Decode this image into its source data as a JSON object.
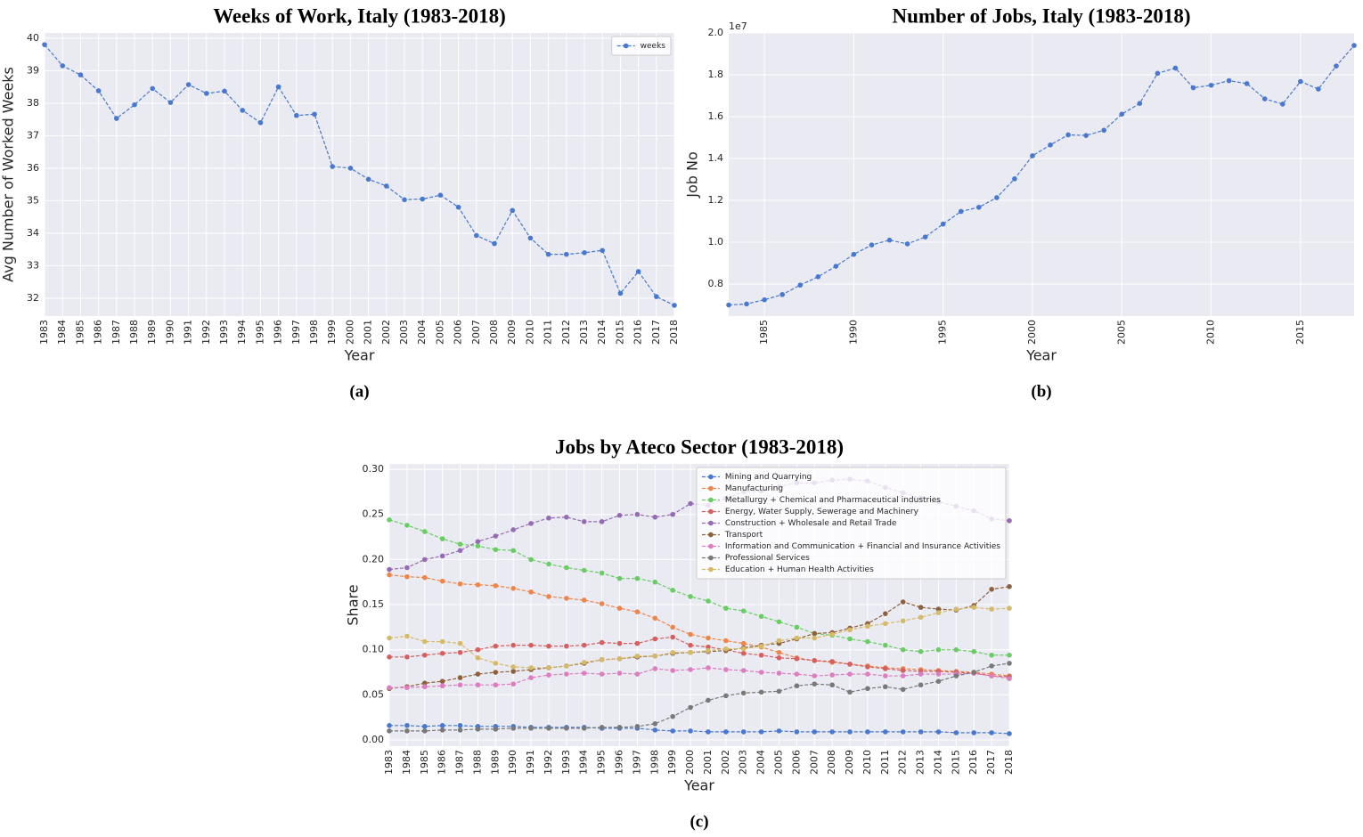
{
  "chart_data": [
    {
      "type": "line",
      "title": "Weeks of Work, Italy (1983-2018)",
      "caption": "(a)",
      "xlabel": "Year",
      "ylabel": "Avg Number of Worked Weeks",
      "categories": [
        "1983",
        "1984",
        "1985",
        "1986",
        "1987",
        "1988",
        "1989",
        "1990",
        "1991",
        "1992",
        "1993",
        "1994",
        "1995",
        "1996",
        "1997",
        "1998",
        "1999",
        "2000",
        "2001",
        "2002",
        "2003",
        "2004",
        "2005",
        "2006",
        "2007",
        "2008",
        "2009",
        "2010",
        "2011",
        "2012",
        "2013",
        "2014",
        "2015",
        "2016",
        "2017",
        "2018"
      ],
      "series": [
        {
          "name": "weeks",
          "color": "#4878d0",
          "values": [
            39.8,
            39.15,
            38.87,
            38.38,
            37.53,
            37.95,
            38.45,
            38.02,
            38.57,
            38.3,
            38.37,
            37.78,
            37.4,
            38.5,
            37.62,
            37.66,
            36.05,
            36.0,
            35.66,
            35.45,
            35.03,
            35.05,
            35.17,
            34.8,
            33.93,
            33.68,
            34.7,
            33.85,
            33.35,
            33.35,
            33.4,
            33.47,
            32.15,
            32.82,
            32.05,
            31.78
          ]
        }
      ],
      "ylim": [
        31.45,
        40.16
      ],
      "yticks": [
        32,
        33,
        34,
        35,
        36,
        37,
        38,
        39,
        40
      ],
      "grid": true,
      "legend": "upper right"
    },
    {
      "type": "line",
      "title": "Number of Jobs, Italy (1983-2018)",
      "caption": "(b)",
      "xlabel": "Year",
      "ylabel": "Job No",
      "y_offset_text": "1e7",
      "x": [
        1983,
        1984,
        1985,
        1986,
        1987,
        1988,
        1989,
        1990,
        1991,
        1992,
        1993,
        1994,
        1995,
        1996,
        1997,
        1998,
        1999,
        2000,
        2001,
        2002,
        2003,
        2004,
        2005,
        2006,
        2007,
        2008,
        2009,
        2010,
        2011,
        2012,
        2013,
        2014,
        2015,
        2016,
        2017,
        2018
      ],
      "series": [
        {
          "color": "#4878d0",
          "values": [
            0.7,
            0.705,
            0.725,
            0.75,
            0.795,
            0.835,
            0.885,
            0.942,
            0.987,
            1.01,
            0.992,
            1.025,
            1.087,
            1.147,
            1.167,
            1.213,
            1.303,
            1.413,
            1.465,
            1.513,
            1.51,
            1.535,
            1.612,
            1.663,
            1.807,
            1.832,
            1.738,
            1.75,
            1.772,
            1.758,
            1.685,
            1.66,
            1.768,
            1.732,
            1.842,
            1.94
          ]
        }
      ],
      "xlim": [
        1983,
        2018
      ],
      "xticks": [
        1985,
        1990,
        1995,
        2000,
        2005,
        2010,
        2015
      ],
      "ylim": [
        0.647,
        2.0
      ],
      "yticks": [
        0.8,
        {
          "value": 1,
          "label": "1.0"
        },
        1.2,
        1.4,
        1.6,
        1.8,
        {
          "value": 2,
          "label": "2.0"
        }
      ],
      "grid": true
    },
    {
      "type": "line",
      "title": "Jobs by Ateco Sector (1983-2018)",
      "caption": "(c)",
      "xlabel": "Year",
      "ylabel": "Share",
      "categories": [
        "1983",
        "1984",
        "1985",
        "1986",
        "1987",
        "1988",
        "1989",
        "1990",
        "1991",
        "1992",
        "1993",
        "1994",
        "1995",
        "1996",
        "1997",
        "1998",
        "1999",
        "2000",
        "2001",
        "2002",
        "2003",
        "2004",
        "2005",
        "2006",
        "2007",
        "2008",
        "2009",
        "2010",
        "2011",
        "2012",
        "2013",
        "2014",
        "2015",
        "2016",
        "2017",
        "2018"
      ],
      "series": [
        {
          "name": "Mining and Quarrying",
          "color": "#4878d0",
          "values": [
            0.016,
            0.016,
            0.015,
            0.016,
            0.016,
            0.015,
            0.015,
            0.015,
            0.014,
            0.014,
            0.014,
            0.014,
            0.013,
            0.013,
            0.013,
            0.011,
            0.01,
            0.01,
            0.009,
            0.009,
            0.009,
            0.009,
            0.01,
            0.009,
            0.009,
            0.009,
            0.009,
            0.009,
            0.009,
            0.009,
            0.009,
            0.009,
            0.008,
            0.008,
            0.008,
            0.007
          ]
        },
        {
          "name": "Manufacturing",
          "color": "#ee854a",
          "values": [
            0.183,
            0.181,
            0.18,
            0.176,
            0.173,
            0.172,
            0.171,
            0.168,
            0.164,
            0.159,
            0.157,
            0.155,
            0.151,
            0.146,
            0.142,
            0.135,
            0.125,
            0.117,
            0.113,
            0.11,
            0.107,
            0.103,
            0.097,
            0.091,
            0.088,
            0.086,
            0.084,
            0.082,
            0.08,
            0.079,
            0.078,
            0.077,
            0.076,
            0.075,
            0.073,
            0.071
          ]
        },
        {
          "name": "Metallurgy + Chemical and Pharmaceutical industries",
          "color": "#6acc64",
          "values": [
            0.244,
            0.238,
            0.231,
            0.223,
            0.217,
            0.215,
            0.211,
            0.21,
            0.2,
            0.195,
            0.191,
            0.188,
            0.185,
            0.179,
            0.179,
            0.175,
            0.166,
            0.159,
            0.154,
            0.146,
            0.143,
            0.137,
            0.131,
            0.125,
            0.118,
            0.116,
            0.112,
            0.109,
            0.105,
            0.1,
            0.098,
            0.1,
            0.1,
            0.098,
            0.094,
            0.094
          ]
        },
        {
          "name": "Energy, Water Supply, Sewerage and Machinery",
          "color": "#d65f5f",
          "values": [
            0.092,
            0.092,
            0.094,
            0.096,
            0.097,
            0.1,
            0.104,
            0.105,
            0.105,
            0.104,
            0.104,
            0.105,
            0.108,
            0.107,
            0.107,
            0.112,
            0.114,
            0.105,
            0.103,
            0.1,
            0.096,
            0.094,
            0.091,
            0.09,
            0.088,
            0.087,
            0.084,
            0.081,
            0.079,
            0.077,
            0.076,
            0.076,
            0.075,
            0.074,
            0.071,
            0.07
          ]
        },
        {
          "name": "Construction + Wholesale and Retail Trade",
          "color": "#956cb4",
          "values": [
            0.189,
            0.191,
            0.2,
            0.204,
            0.21,
            0.22,
            0.226,
            0.233,
            0.24,
            0.246,
            0.247,
            0.242,
            0.242,
            0.249,
            0.25,
            0.247,
            0.25,
            0.262,
            0.26,
            0.268,
            0.275,
            0.276,
            0.281,
            0.285,
            0.285,
            0.288,
            0.289,
            0.287,
            0.28,
            0.274,
            0.268,
            0.264,
            0.259,
            0.254,
            0.245,
            0.243
          ]
        },
        {
          "name": "Transport",
          "color": "#8c613c",
          "values": [
            0.057,
            0.059,
            0.063,
            0.065,
            0.069,
            0.073,
            0.075,
            0.076,
            0.078,
            0.08,
            0.082,
            0.085,
            0.089,
            0.09,
            0.092,
            0.093,
            0.096,
            0.097,
            0.098,
            0.099,
            0.102,
            0.105,
            0.107,
            0.112,
            0.118,
            0.119,
            0.124,
            0.129,
            0.14,
            0.153,
            0.147,
            0.145,
            0.144,
            0.149,
            0.167,
            0.17
          ]
        },
        {
          "name": "Information and Communication + Financial and Insurance Activities",
          "color": "#dc7ec0",
          "values": [
            0.058,
            0.058,
            0.059,
            0.06,
            0.061,
            0.061,
            0.061,
            0.062,
            0.069,
            0.072,
            0.073,
            0.074,
            0.073,
            0.074,
            0.073,
            0.079,
            0.077,
            0.078,
            0.08,
            0.078,
            0.077,
            0.075,
            0.074,
            0.073,
            0.071,
            0.072,
            0.073,
            0.073,
            0.071,
            0.071,
            0.073,
            0.073,
            0.073,
            0.074,
            0.071,
            0.068
          ]
        },
        {
          "name": "Professional Services",
          "color": "#797979",
          "values": [
            0.01,
            0.01,
            0.01,
            0.011,
            0.011,
            0.012,
            0.012,
            0.013,
            0.013,
            0.013,
            0.013,
            0.013,
            0.014,
            0.014,
            0.015,
            0.018,
            0.026,
            0.036,
            0.044,
            0.049,
            0.052,
            0.053,
            0.054,
            0.06,
            0.062,
            0.061,
            0.053,
            0.057,
            0.059,
            0.056,
            0.061,
            0.065,
            0.071,
            0.075,
            0.082,
            0.085
          ]
        },
        {
          "name": "Education + Human Health Activities",
          "color": "#d5bb67",
          "values": [
            0.113,
            0.115,
            0.109,
            0.109,
            0.107,
            0.091,
            0.085,
            0.081,
            0.08,
            0.08,
            0.082,
            0.086,
            0.089,
            0.09,
            0.093,
            0.093,
            0.097,
            0.097,
            0.099,
            0.101,
            0.101,
            0.104,
            0.11,
            0.113,
            0.113,
            0.117,
            0.122,
            0.126,
            0.129,
            0.132,
            0.136,
            0.141,
            0.145,
            0.147,
            0.145,
            0.146
          ]
        }
      ],
      "ylim": [
        -0.0069,
        0.306
      ],
      "yticks": [
        {
          "value": 0,
          "label": "0.00"
        },
        0.05,
        {
          "value": 0.1,
          "label": "0.10"
        },
        0.15,
        {
          "value": 0.2,
          "label": "0.20"
        },
        0.25,
        {
          "value": 0.3,
          "label": "0.30"
        }
      ],
      "grid": true,
      "legend": "upper right"
    }
  ]
}
